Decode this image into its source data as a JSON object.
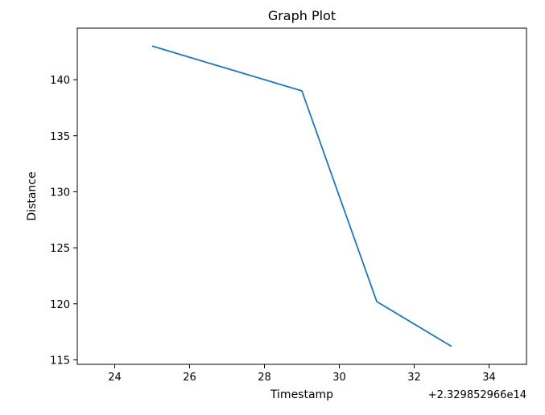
{
  "chart_data": {
    "type": "line",
    "title": "Graph Plot",
    "xlabel": "Timestamp",
    "ylabel": "Distance",
    "x_offset_label": "+2.329852966e14",
    "xlim": [
      23.0,
      35.0
    ],
    "ylim": [
      114.6,
      144.6
    ],
    "xticks": [
      24,
      26,
      28,
      30,
      32,
      34
    ],
    "yticks": [
      115,
      120,
      125,
      130,
      135,
      140
    ],
    "grid": false,
    "series": [
      {
        "color": "#1f77b4",
        "x": [
          25.0,
          27.0,
          29.0,
          31.0,
          33.0
        ],
        "y": [
          143.0,
          141.0,
          139.0,
          120.2,
          116.2
        ]
      }
    ]
  }
}
